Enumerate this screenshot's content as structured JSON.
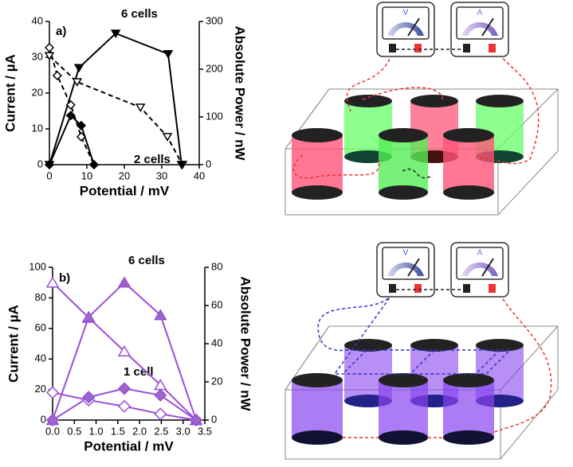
{
  "chart_data": [
    {
      "type": "line",
      "x_label": "Potential / mV",
      "y_label": "Current / µA",
      "y2_label": "Absolute Power / nW",
      "annotations": [
        "a)",
        "6 cells",
        "2 cells"
      ],
      "xlim": [
        0,
        40
      ],
      "xticks": [
        0,
        10,
        20,
        30,
        40
      ],
      "ylim": [
        0,
        40
      ],
      "yticks": [
        0,
        10,
        20,
        30,
        40
      ],
      "y2lim": [
        0,
        300
      ],
      "y2ticks": [
        0,
        100,
        200,
        300
      ],
      "series": [
        {
          "color": "#000000",
          "marker": "triangle-down",
          "filled": false,
          "dashed": true,
          "axis": "y",
          "x": [
            0,
            7.4,
            24.3,
            31.5,
            35.5
          ],
          "values": [
            30.4,
            23.1,
            16,
            7.8,
            0
          ]
        },
        {
          "color": "#000000",
          "marker": "triangle-down",
          "filled": true,
          "dashed": false,
          "axis": "y2",
          "x": [
            0,
            7.9,
            17.7,
            31.7,
            35.3
          ],
          "values": [
            0,
            203,
            275,
            232,
            0
          ]
        },
        {
          "color": "#000000",
          "marker": "diamond",
          "filled": false,
          "dashed": true,
          "axis": "y",
          "x": [
            0,
            2.1,
            5.7,
            8.5,
            11.9
          ],
          "values": [
            32.7,
            24.9,
            16.7,
            7.8,
            0
          ]
        },
        {
          "color": "#000000",
          "marker": "diamond",
          "filled": true,
          "dashed": false,
          "axis": "y2",
          "x": [
            0,
            5.7,
            8.5,
            11.9
          ],
          "values": [
            0,
            103,
            82,
            0
          ]
        }
      ]
    },
    {
      "type": "line",
      "x_label": "Potential / mV",
      "y_label": "Current / µA",
      "y2_label": "Absolute Power / nW",
      "annotations": [
        "b)",
        "6 cells",
        "1 cell"
      ],
      "xlim": [
        0,
        3.5
      ],
      "xticks": [
        {
          "value": 0,
          "label": "0.0"
        },
        0.5,
        {
          "value": 1,
          "label": "1.0"
        },
        1.5,
        {
          "value": 2,
          "label": "2.0"
        },
        2.5,
        {
          "value": 3,
          "label": "3.0"
        },
        3.5
      ],
      "ylim": [
        0,
        100
      ],
      "yticks": [
        0,
        20,
        40,
        60,
        80,
        100
      ],
      "y2lim": [
        0,
        80
      ],
      "y2ticks": [
        0,
        20,
        40,
        60,
        80
      ],
      "series": [
        {
          "color": "#9b4fd6",
          "fill": "#9966cc",
          "marker": "triangle-up",
          "filled": false,
          "dashed": false,
          "axis": "y",
          "x": [
            0,
            0.83,
            1.65,
            2.48,
            3.3
          ],
          "values": [
            90,
            67,
            45,
            23,
            0
          ]
        },
        {
          "color": "#9b4fd6",
          "fill": "#9966cc",
          "marker": "triangle-up",
          "filled": true,
          "dashed": false,
          "axis": "y2",
          "x": [
            0,
            0.83,
            1.65,
            2.48,
            3.3
          ],
          "values": [
            0,
            54,
            72,
            55,
            0
          ]
        },
        {
          "color": "#9b4fd6",
          "fill": "#9966cc",
          "marker": "diamond",
          "filled": false,
          "dashed": false,
          "axis": "y",
          "x": [
            0,
            0.83,
            1.65,
            2.48,
            3.3
          ],
          "values": [
            18,
            13,
            9,
            4,
            0
          ]
        },
        {
          "color": "#9b4fd6",
          "fill": "#9966cc",
          "marker": "diamond",
          "filled": true,
          "dashed": false,
          "axis": "y2",
          "x": [
            0,
            0.83,
            1.65,
            2.48,
            3.3
          ],
          "values": [
            0,
            12,
            16.5,
            13,
            0
          ]
        }
      ]
    }
  ],
  "diagrams": [
    {
      "meters": [
        "V",
        "A"
      ]
    },
    {
      "meters": [
        "V",
        "A"
      ]
    }
  ]
}
